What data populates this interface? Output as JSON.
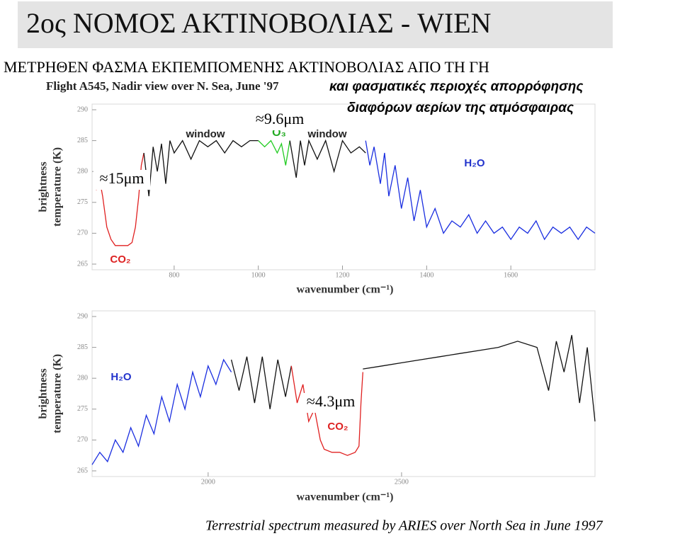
{
  "header": {
    "title": "2ος ΝΟΜΟΣ ΑΚΤΙΝΟΒΟΛΙΑΣ - WIEN",
    "subtitle": "ΜΕΤΡΗΘΕΝ ΦΑΣΜΑ ΕΚΠΕΜΠΟΜΕΝΗΣ ΑΚΤΙΝΟΒΟΛΙΑΣ ΑΠΟ ΤΗ ΓΗ",
    "note_lines": [
      "και φασματικές περιοχές απορρόφησης",
      "διαφόρων αερίων της ατμόσφαιρας"
    ]
  },
  "chart_data": [
    {
      "type": "line",
      "title": "Flight A545, Nadir view over N. Sea, June '97",
      "x_label": "wavenumber (cm⁻¹)",
      "y_label": [
        "brightness",
        "temperature (K)"
      ],
      "xlim": [
        605,
        1800
      ],
      "ylim": [
        265,
        290
      ],
      "xticks": [
        800,
        1000,
        1200,
        1400,
        1600
      ],
      "yticks": [
        265,
        270,
        275,
        280,
        285,
        290
      ],
      "annotations": [
        {
          "text": "window",
          "color": "#222222"
        },
        {
          "text": "window",
          "color": "#222222"
        },
        {
          "text": "O₃",
          "color": "#22aa22"
        },
        {
          "text": "H₂O",
          "color": "#2233cc"
        },
        {
          "text": "CO₂",
          "color": "#dd2222"
        },
        {
          "text": "≈9.6μm",
          "color": "#000000"
        },
        {
          "text": "≈15μm",
          "color": "#000000"
        }
      ],
      "series": [
        {
          "color": "#e02020",
          "x": [
            615,
            622,
            630,
            640,
            650,
            660,
            670,
            680,
            690,
            700,
            708,
            716,
            722,
            728
          ],
          "values": [
            277,
            279,
            276,
            271,
            269,
            268,
            268,
            268,
            268,
            268.5,
            271,
            276,
            281,
            283
          ]
        },
        {
          "color": "#111111",
          "x": [
            728,
            740,
            750,
            760,
            770,
            780,
            790,
            800,
            820,
            840,
            860,
            880,
            900,
            920,
            940,
            960,
            980,
            1000
          ],
          "values": [
            283,
            276,
            284,
            280,
            284.5,
            278,
            285,
            283,
            285,
            282,
            285,
            284,
            285,
            283,
            285,
            284,
            285,
            285
          ]
        },
        {
          "color": "#22cc22",
          "x": [
            1000,
            1015,
            1030,
            1045,
            1055,
            1065,
            1075
          ],
          "values": [
            285,
            284,
            285,
            283,
            284.5,
            281,
            285
          ]
        },
        {
          "color": "#111111",
          "x": [
            1075,
            1090,
            1100,
            1110,
            1120,
            1140,
            1160,
            1180,
            1200,
            1220,
            1240,
            1255
          ],
          "values": [
            285,
            279,
            285,
            281,
            285,
            282,
            285,
            280,
            285,
            283,
            284,
            283
          ]
        },
        {
          "color": "#1a2ee0",
          "x": [
            1255,
            1265,
            1275,
            1290,
            1300,
            1310,
            1325,
            1340,
            1355,
            1370,
            1385,
            1400,
            1420,
            1440,
            1460,
            1480,
            1500,
            1520,
            1540,
            1560,
            1580,
            1600,
            1620,
            1640,
            1660,
            1680,
            1700,
            1720,
            1740,
            1760,
            1780,
            1800
          ],
          "values": [
            285,
            281,
            284,
            278,
            283,
            276,
            281,
            274,
            279,
            272,
            277,
            271,
            274,
            270,
            272,
            271,
            273,
            270,
            272,
            270,
            271,
            269,
            271,
            270,
            272,
            269,
            271,
            270,
            271,
            269,
            271,
            270
          ]
        }
      ]
    },
    {
      "type": "line",
      "x_label": "wavenumber (cm⁻¹)",
      "y_label": [
        "brightness",
        "temperature (K)"
      ],
      "xlim": [
        1700,
        3000
      ],
      "ylim": [
        265,
        290
      ],
      "xticks": [
        2000,
        2500
      ],
      "yticks": [
        265,
        270,
        275,
        280,
        285,
        290
      ],
      "annotations": [
        {
          "text": "H₂O",
          "color": "#2233cc"
        },
        {
          "text": "CO₂",
          "color": "#dd2222"
        },
        {
          "text": "≈4.3μm",
          "color": "#000000"
        }
      ],
      "series": [
        {
          "color": "#1a2ee0",
          "x": [
            1700,
            1720,
            1740,
            1760,
            1780,
            1800,
            1820,
            1840,
            1860,
            1880,
            1900,
            1920,
            1940,
            1960,
            1980,
            2000,
            2020,
            2040,
            2060
          ],
          "values": [
            266,
            268,
            266.5,
            270,
            268,
            272,
            269,
            274,
            271,
            277,
            273,
            279,
            275,
            281,
            277,
            282,
            279,
            283,
            281
          ]
        },
        {
          "color": "#111111",
          "x": [
            2060,
            2080,
            2100,
            2120,
            2140,
            2160,
            2180,
            2200,
            2215
          ],
          "values": [
            283,
            278,
            283.5,
            276,
            283.5,
            275,
            283,
            277,
            282
          ]
        },
        {
          "color": "#e02020",
          "x": [
            2215,
            2230,
            2245,
            2260,
            2275,
            2290,
            2300,
            2320,
            2340,
            2360,
            2380,
            2390,
            2395,
            2400
          ],
          "values": [
            282,
            276,
            279,
            273,
            275,
            270,
            268.5,
            268,
            268,
            267.5,
            268,
            269,
            276,
            281
          ]
        },
        {
          "color": "#111111",
          "x": [
            2400,
            2450,
            2500,
            2550,
            2600,
            2650,
            2700,
            2750,
            2800,
            2850,
            2880,
            2900,
            2920,
            2940,
            2960,
            2980,
            3000
          ],
          "values": [
            281.5,
            282,
            282.5,
            283,
            283.5,
            284,
            284.5,
            285,
            286,
            285,
            278,
            286,
            281,
            287,
            276,
            285,
            273
          ]
        }
      ]
    }
  ],
  "caption": "Terrestrial spectrum measured by ARIES over North Sea in June 1997"
}
